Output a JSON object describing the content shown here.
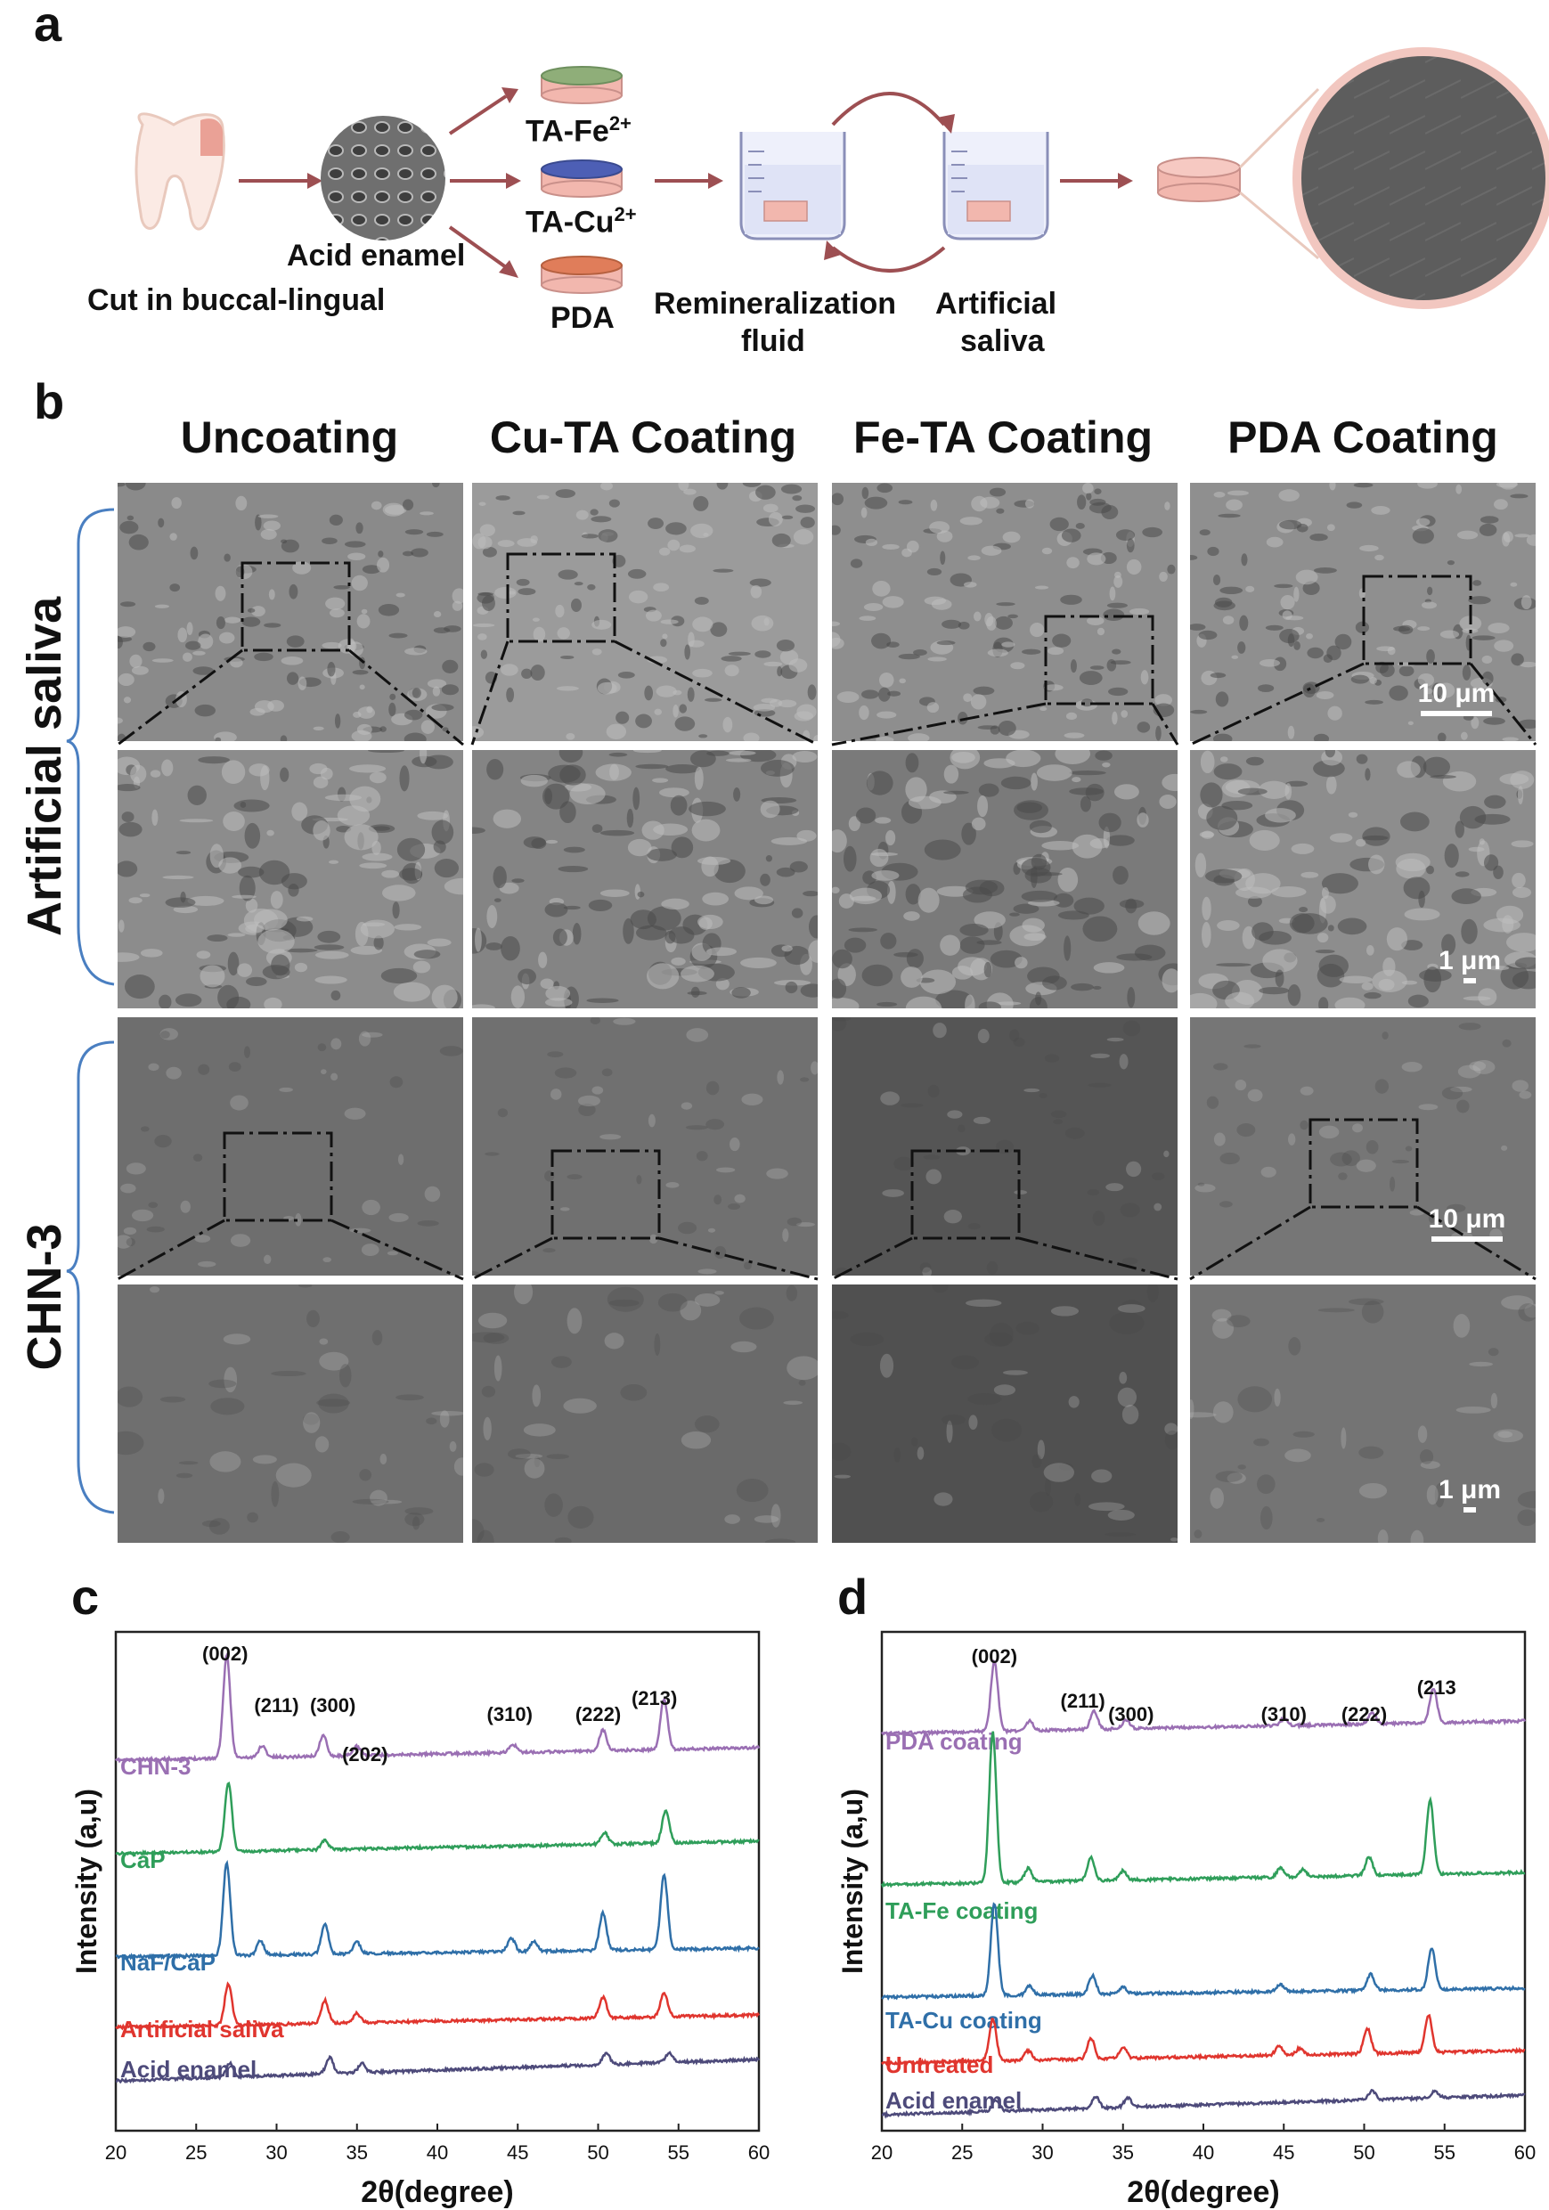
{
  "panel_a": {
    "label": "a",
    "cut_label": "Cut in buccal-lingual",
    "acid_label": "Acid enamel",
    "coatings": [
      {
        "label": "TA-Fe",
        "sup": "2+",
        "top": "#8fae79"
      },
      {
        "label": "TA-Cu",
        "sup": "2+",
        "top": "#4d5fb5"
      },
      {
        "label": "PDA",
        "sup": "",
        "top": "#e07d5a"
      }
    ],
    "remin_label_1": "Remineralization",
    "remin_label_2": "fluid",
    "saliva_label_1": "Artificial",
    "saliva_label_2": "saliva"
  },
  "panel_b": {
    "label": "b",
    "columns": [
      "Uncoating",
      "Cu-TA Coating",
      "Fe-TA Coating",
      "PDA Coating"
    ],
    "rows": [
      "Artificial saliva",
      "CHN-3"
    ],
    "scale_large": "10 μm",
    "scale_small": "1 μm"
  },
  "chart_data": [
    {
      "panel": "c",
      "type": "line",
      "xlabel": "2θ(degree)",
      "ylabel": "Intensity (a,u)",
      "xlim": [
        20,
        60
      ],
      "xticks": [
        20,
        25,
        30,
        35,
        40,
        45,
        50,
        55,
        60
      ],
      "peak_labels": [
        {
          "text": "(002)",
          "x": 26.8
        },
        {
          "text": "(211)",
          "x": 30.0
        },
        {
          "text": "(300)",
          "x": 33.5
        },
        {
          "text": "(202)",
          "x": 35.5
        },
        {
          "text": "(310)",
          "x": 44.5
        },
        {
          "text": "(222)",
          "x": 50.0
        },
        {
          "text": "(213)",
          "x": 53.5
        }
      ],
      "series": [
        {
          "name": "CHN-3",
          "color": "#9a6fb3",
          "peaks": [
            [
              26.9,
              4.4
            ],
            [
              29.1,
              0.5
            ],
            [
              32.9,
              0.9
            ],
            [
              35.0,
              0.4
            ],
            [
              44.7,
              0.35
            ],
            [
              50.3,
              0.9
            ],
            [
              54.1,
              2.2
            ]
          ]
        },
        {
          "name": "CaP",
          "color": "#2f9e5a",
          "peaks": [
            [
              27.0,
              3.0
            ],
            [
              33.0,
              0.4
            ],
            [
              50.4,
              0.5
            ],
            [
              54.2,
              1.4
            ]
          ]
        },
        {
          "name": "NaF/CaP",
          "color": "#2f6fa8",
          "peaks": [
            [
              26.9,
              4.0
            ],
            [
              29.0,
              0.6
            ],
            [
              33.0,
              1.3
            ],
            [
              35.0,
              0.5
            ],
            [
              44.6,
              0.6
            ],
            [
              46.0,
              0.4
            ],
            [
              50.3,
              1.6
            ],
            [
              54.1,
              3.2
            ]
          ]
        },
        {
          "name": "Artificial saliva",
          "color": "#e0352e",
          "peaks": [
            [
              27.0,
              1.8
            ],
            [
              33.0,
              1.0
            ],
            [
              35.0,
              0.4
            ],
            [
              50.3,
              0.9
            ],
            [
              54.1,
              1.0
            ]
          ]
        },
        {
          "name": "Acid enamel",
          "color": "#4d4a7a",
          "peaks": [
            [
              27.1,
              0.6
            ],
            [
              33.3,
              0.7
            ],
            [
              35.3,
              0.4
            ],
            [
              50.5,
              0.5
            ],
            [
              54.4,
              0.4
            ]
          ]
        }
      ]
    },
    {
      "panel": "d",
      "type": "line",
      "xlabel": "2θ(degree)",
      "ylabel": "Intensity (a,u)",
      "xlim": [
        20,
        60
      ],
      "xticks": [
        20,
        25,
        30,
        35,
        40,
        45,
        50,
        55,
        60
      ],
      "peak_labels": [
        {
          "text": "(002)",
          "x": 27.0
        },
        {
          "text": "(211)",
          "x": 32.5
        },
        {
          "text": "(300)",
          "x": 35.5
        },
        {
          "text": "(310)",
          "x": 45.0
        },
        {
          "text": "(222)",
          "x": 50.0
        },
        {
          "text": "(213",
          "x": 54.5
        }
      ],
      "series": [
        {
          "name": "PDA coating",
          "color": "#9a6fb3",
          "peaks": [
            [
              27.0,
              3.0
            ],
            [
              29.2,
              0.4
            ],
            [
              33.2,
              0.8
            ],
            [
              35.2,
              0.4
            ],
            [
              45.0,
              0.3
            ],
            [
              50.5,
              0.5
            ],
            [
              54.3,
              1.5
            ]
          ]
        },
        {
          "name": "TA-Fe coating",
          "color": "#2f9e5a",
          "peaks": [
            [
              26.9,
              6.5
            ],
            [
              29.1,
              0.6
            ],
            [
              33.0,
              1.0
            ],
            [
              35.0,
              0.4
            ],
            [
              44.8,
              0.4
            ],
            [
              46.2,
              0.3
            ],
            [
              50.3,
              0.8
            ],
            [
              54.1,
              3.2
            ]
          ]
        },
        {
          "name": "TA-Cu coating",
          "color": "#2f6fa8",
          "peaks": [
            [
              27.0,
              4.0
            ],
            [
              29.2,
              0.4
            ],
            [
              33.1,
              0.8
            ],
            [
              35.0,
              0.3
            ],
            [
              44.8,
              0.3
            ],
            [
              50.4,
              0.7
            ],
            [
              54.2,
              1.8
            ]
          ]
        },
        {
          "name": "Untreated",
          "color": "#e0352e",
          "peaks": [
            [
              26.9,
              1.8
            ],
            [
              29.1,
              0.4
            ],
            [
              33.0,
              0.9
            ],
            [
              35.0,
              0.5
            ],
            [
              44.7,
              0.4
            ],
            [
              46.0,
              0.3
            ],
            [
              50.2,
              1.1
            ],
            [
              54.0,
              1.6
            ]
          ]
        },
        {
          "name": "Acid enamel",
          "color": "#4d4a7a",
          "peaks": [
            [
              27.1,
              0.5
            ],
            [
              33.3,
              0.5
            ],
            [
              35.3,
              0.4
            ],
            [
              50.5,
              0.4
            ],
            [
              54.4,
              0.3
            ]
          ]
        }
      ]
    }
  ],
  "panel_c_label": "c",
  "panel_d_label": "d"
}
